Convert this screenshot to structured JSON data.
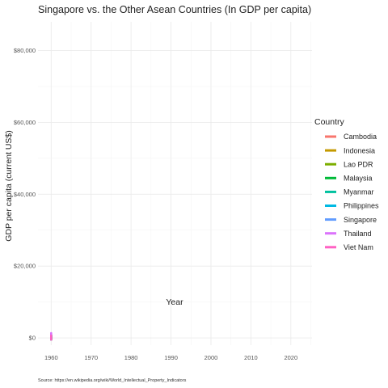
{
  "chart_data": {
    "type": "line",
    "title": "Singapore vs. the Other Asean Countries (In GDP per capita)",
    "xlabel": "Year",
    "ylabel": "GDP per capita (current US$)",
    "caption": "Source: https://en.wikipedia.org/wiki/World_Intellectual_Property_Indicators",
    "xlim": [
      1956.7,
      2025.3
    ],
    "ylim": [
      -2000,
      88000
    ],
    "x_ticks": [
      1960,
      1970,
      1980,
      1990,
      2000,
      2010,
      2020
    ],
    "x_tick_labels": [
      "1960",
      "1970",
      "1980",
      "1990",
      "2000",
      "2010",
      "2020"
    ],
    "y_ticks": [
      0,
      20000,
      40000,
      60000,
      80000
    ],
    "y_tick_labels": [
      "$0",
      "$20,000",
      "$40,000",
      "$60,000",
      "$80,000"
    ],
    "grid": true,
    "legend": {
      "title": "Country",
      "position": "right",
      "entries": [
        {
          "name": "Cambodia",
          "color": "#F8766D"
        },
        {
          "name": "Indonesia",
          "color": "#C49A00"
        },
        {
          "name": "Lao PDR",
          "color": "#7CAE00"
        },
        {
          "name": "Malaysia",
          "color": "#00BA38"
        },
        {
          "name": "Myanmar",
          "color": "#00C19F"
        },
        {
          "name": "Philippines",
          "color": "#00B9E3"
        },
        {
          "name": "Singapore",
          "color": "#619CFF"
        },
        {
          "name": "Thailand",
          "color": "#DB72FB"
        },
        {
          "name": "Viet Nam",
          "color": "#FF61C3"
        }
      ]
    },
    "series": [
      {
        "name": "Cambodia",
        "color": "#F8766D",
        "points": [
          [
            1960,
            100
          ]
        ]
      },
      {
        "name": "Indonesia",
        "color": "#C49A00",
        "points": [
          [
            1960,
            100
          ]
        ]
      },
      {
        "name": "Lao PDR",
        "color": "#7CAE00",
        "points": [
          [
            1960,
            100
          ]
        ]
      },
      {
        "name": "Malaysia",
        "color": "#00BA38",
        "points": [
          [
            1960,
            200
          ]
        ]
      },
      {
        "name": "Myanmar",
        "color": "#00C19F",
        "points": [
          [
            1960,
            100
          ]
        ]
      },
      {
        "name": "Philippines",
        "color": "#00B9E3",
        "points": [
          [
            1960,
            100
          ]
        ]
      },
      {
        "name": "Singapore",
        "color": "#619CFF",
        "points": [
          [
            1960,
            400
          ]
        ]
      },
      {
        "name": "Thailand",
        "color": "#DB72FB",
        "points": [
          [
            1960,
            800
          ]
        ]
      },
      {
        "name": "Viet Nam",
        "color": "#FF61C3",
        "points": [
          [
            1960,
            100
          ]
        ]
      }
    ]
  }
}
